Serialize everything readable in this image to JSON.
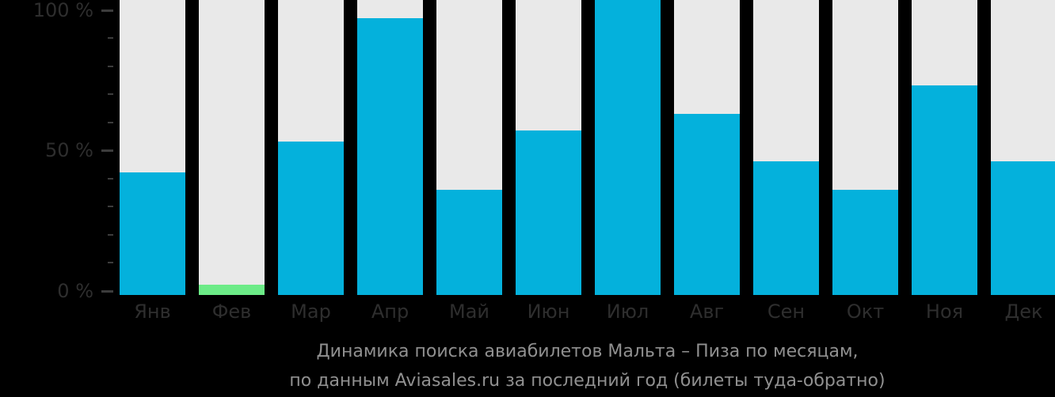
{
  "colors": {
    "background": "#000000",
    "bar": "#04b1dc",
    "bar_highlight": "#6ceb87",
    "track": "#e9e9e9",
    "axis_text": "#2e2e2e",
    "tick": "#3c3c3c",
    "caption_text": "#909090"
  },
  "chart_data": {
    "type": "bar",
    "title": "Динамика поиска авиабилетов Мальта – Пиза по месяцам,",
    "subtitle": "по данным Aviasales.ru за последний год (билеты туда-обратно)",
    "categories": [
      "Янв",
      "Фев",
      "Мар",
      "Апр",
      "Май",
      "Июн",
      "Июл",
      "Авг",
      "Сен",
      "Окт",
      "Ноя",
      "Дек"
    ],
    "values": [
      42,
      2,
      53,
      97,
      36,
      57,
      100,
      63,
      46,
      36,
      73,
      46
    ],
    "unit": "%",
    "xlabel": "",
    "ylabel": "",
    "ylim": [
      0,
      100
    ],
    "grid": "off",
    "legend": "none",
    "background_tracks_full_height": true,
    "highlight": {
      "index": 1,
      "category": "Фев",
      "color": "#6ceb87"
    },
    "axis": {
      "major_ticks": [
        {
          "value": 100,
          "label": "100 %"
        },
        {
          "value": 50,
          "label": "50 %"
        },
        {
          "value": 0,
          "label": "0 %"
        }
      ],
      "minor_tick_values": [
        90,
        80,
        70,
        60,
        40,
        30,
        20,
        10
      ]
    }
  }
}
